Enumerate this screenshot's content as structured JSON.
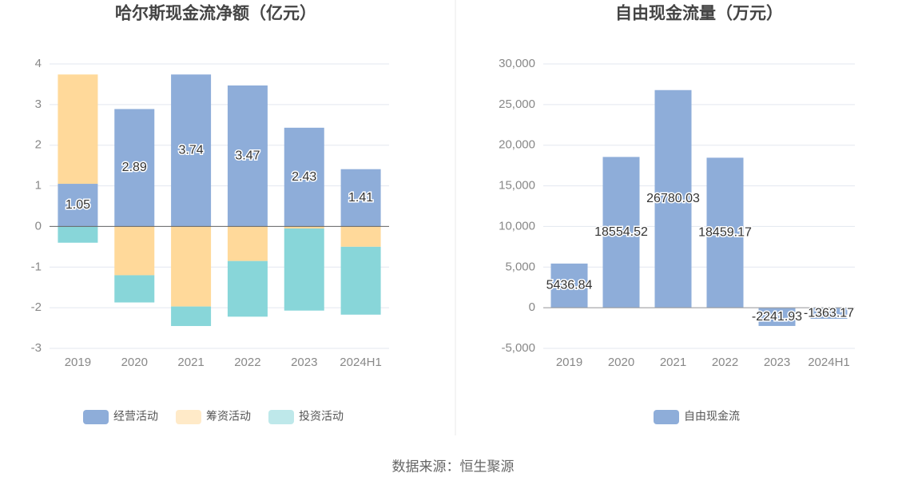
{
  "chart_data": [
    {
      "type": "bar",
      "stacked": true,
      "title": "哈尔斯现金流净额（亿元）",
      "categories": [
        "2019",
        "2020",
        "2021",
        "2022",
        "2023",
        "2024H1"
      ],
      "series": [
        {
          "name": "经营活动",
          "color": "#8eadd9",
          "labels": true,
          "values": [
            1.05,
            2.89,
            3.74,
            3.47,
            2.43,
            1.41
          ]
        },
        {
          "name": "筹资活动",
          "color": "#ffd99a",
          "values": [
            2.69,
            -1.2,
            -1.97,
            -0.85,
            -0.05,
            -0.5
          ]
        },
        {
          "name": "投资活动",
          "color": "#88d6d9",
          "values": [
            -0.4,
            -0.67,
            -0.48,
            -1.37,
            -2.02,
            -1.67
          ]
        }
      ],
      "ylim": [
        -3,
        4
      ],
      "yticks": [
        -3,
        -2,
        -1,
        0,
        1,
        2,
        3,
        4
      ],
      "grid": true,
      "legend": "bottom"
    },
    {
      "type": "bar",
      "title": "自由现金流量（万元）",
      "categories": [
        "2019",
        "2020",
        "2021",
        "2022",
        "2023",
        "2024H1"
      ],
      "series": [
        {
          "name": "自由现金流",
          "color": "#8eadd9",
          "labels": true,
          "values": [
            5436.84,
            18554.52,
            26780.03,
            18459.17,
            -2241.93,
            -1363.17
          ]
        }
      ],
      "ylim": [
        -5000,
        30000
      ],
      "yticks": [
        {
          "value": -5000,
          "label": "-5,000"
        },
        0,
        {
          "value": 5000,
          "label": "5,000"
        },
        {
          "value": 10000,
          "label": "10,000"
        },
        {
          "value": 15000,
          "label": "15,000"
        },
        {
          "value": 20000,
          "label": "20,000"
        },
        {
          "value": 25000,
          "label": "25,000"
        },
        {
          "value": 30000,
          "label": "30,000"
        }
      ],
      "grid": true,
      "legend": "bottom"
    }
  ],
  "source": "数据来源：恒生聚源"
}
